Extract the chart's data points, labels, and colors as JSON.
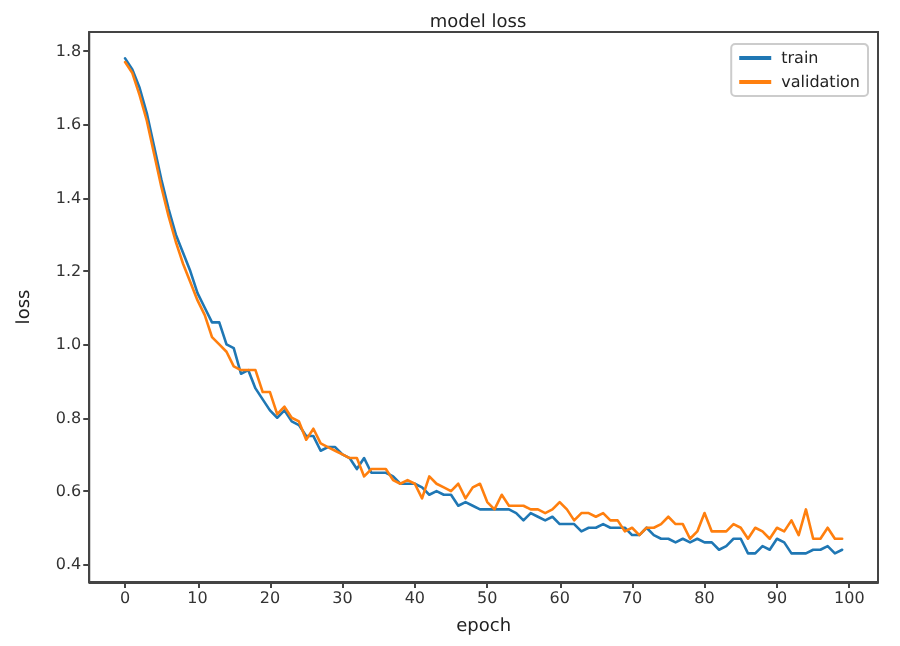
{
  "chart_data": {
    "type": "line",
    "title": "model loss",
    "xlabel": "epoch",
    "ylabel": "loss",
    "x": [
      0,
      1,
      2,
      3,
      4,
      5,
      6,
      7,
      8,
      9,
      10,
      11,
      12,
      13,
      14,
      15,
      16,
      17,
      18,
      19,
      20,
      21,
      22,
      23,
      24,
      25,
      26,
      27,
      28,
      29,
      30,
      31,
      32,
      33,
      34,
      35,
      36,
      37,
      38,
      39,
      40,
      41,
      42,
      43,
      44,
      45,
      46,
      47,
      48,
      49,
      50,
      51,
      52,
      53,
      54,
      55,
      56,
      57,
      58,
      59,
      60,
      61,
      62,
      63,
      64,
      65,
      66,
      67,
      68,
      69,
      70,
      71,
      72,
      73,
      74,
      75,
      76,
      77,
      78,
      79,
      80,
      81,
      82,
      83,
      84,
      85,
      86,
      87,
      88,
      89,
      90,
      91,
      92,
      93,
      94,
      95,
      96,
      97,
      98,
      99
    ],
    "series": [
      {
        "name": "train",
        "color": "#1f77b4",
        "values": [
          1.78,
          1.75,
          1.7,
          1.63,
          1.54,
          1.45,
          1.37,
          1.3,
          1.25,
          1.2,
          1.14,
          1.1,
          1.06,
          1.06,
          1.0,
          0.99,
          0.92,
          0.93,
          0.88,
          0.85,
          0.82,
          0.8,
          0.82,
          0.79,
          0.78,
          0.75,
          0.75,
          0.71,
          0.72,
          0.72,
          0.7,
          0.69,
          0.66,
          0.69,
          0.65,
          0.65,
          0.65,
          0.64,
          0.62,
          0.62,
          0.62,
          0.61,
          0.59,
          0.6,
          0.59,
          0.59,
          0.56,
          0.57,
          0.56,
          0.55,
          0.55,
          0.55,
          0.55,
          0.55,
          0.54,
          0.52,
          0.54,
          0.53,
          0.52,
          0.53,
          0.51,
          0.51,
          0.51,
          0.49,
          0.5,
          0.5,
          0.51,
          0.5,
          0.5,
          0.5,
          0.48,
          0.48,
          0.5,
          0.48,
          0.47,
          0.47,
          0.46,
          0.47,
          0.46,
          0.47,
          0.46,
          0.46,
          0.44,
          0.45,
          0.47,
          0.47,
          0.43,
          0.43,
          0.45,
          0.44,
          0.47,
          0.46,
          0.43,
          0.43,
          0.43,
          0.44,
          0.44,
          0.45,
          0.43,
          0.44
        ]
      },
      {
        "name": "validation",
        "color": "#ff7f0e",
        "values": [
          1.77,
          1.74,
          1.68,
          1.61,
          1.52,
          1.43,
          1.35,
          1.28,
          1.22,
          1.17,
          1.12,
          1.08,
          1.02,
          1.0,
          0.98,
          0.94,
          0.93,
          0.93,
          0.93,
          0.87,
          0.87,
          0.81,
          0.83,
          0.8,
          0.79,
          0.74,
          0.77,
          0.73,
          0.72,
          0.71,
          0.7,
          0.69,
          0.69,
          0.64,
          0.66,
          0.66,
          0.66,
          0.63,
          0.62,
          0.63,
          0.62,
          0.58,
          0.64,
          0.62,
          0.61,
          0.6,
          0.62,
          0.58,
          0.61,
          0.62,
          0.57,
          0.55,
          0.59,
          0.56,
          0.56,
          0.56,
          0.55,
          0.55,
          0.54,
          0.55,
          0.57,
          0.55,
          0.52,
          0.54,
          0.54,
          0.53,
          0.54,
          0.52,
          0.52,
          0.49,
          0.5,
          0.48,
          0.5,
          0.5,
          0.51,
          0.53,
          0.51,
          0.51,
          0.47,
          0.49,
          0.54,
          0.49,
          0.49,
          0.49,
          0.51,
          0.5,
          0.47,
          0.5,
          0.49,
          0.47,
          0.5,
          0.49,
          0.52,
          0.48,
          0.55,
          0.47,
          0.47,
          0.5,
          0.47,
          0.47
        ]
      }
    ],
    "xlim": [
      -4.95,
      103.95
    ],
    "xticks": [
      0,
      10,
      20,
      30,
      40,
      50,
      60,
      70,
      80,
      90,
      100
    ],
    "ylim": [
      0.352,
      1.852
    ],
    "yticks": [
      {
        "value": 0.4,
        "label": "0.4"
      },
      {
        "value": 0.6,
        "label": "0.6"
      },
      {
        "value": 0.8,
        "label": "0.8"
      },
      {
        "value": 1.0,
        "label": "1.0"
      },
      {
        "value": 1.2,
        "label": "1.2"
      },
      {
        "value": 1.4,
        "label": "1.4"
      },
      {
        "value": 1.6,
        "label": "1.6"
      },
      {
        "value": 1.8,
        "label": "1.8"
      }
    ],
    "legend": "top right",
    "grid": false,
    "marker": "none",
    "line_style": "solid"
  }
}
